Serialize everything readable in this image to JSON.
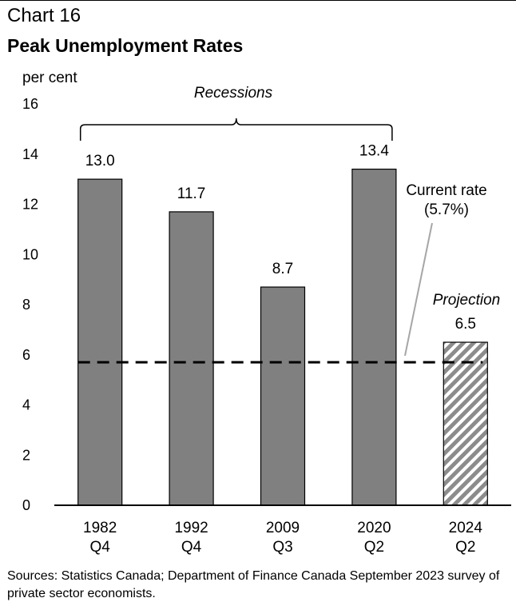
{
  "header": {
    "chart_number": "Chart 16",
    "title": "Peak Unemployment Rates"
  },
  "source_note": "Sources: Statistics Canada; Department of Finance Canada September 2023 survey of private sector economists.",
  "chart_data": {
    "type": "bar",
    "title": "Peak Unemployment Rates",
    "ylabel": "per cent",
    "ylim": [
      0,
      16
    ],
    "yticks": [
      0,
      2,
      4,
      6,
      8,
      10,
      12,
      14,
      16
    ],
    "categories": [
      {
        "line1": "1982",
        "line2": "Q4"
      },
      {
        "line1": "1992",
        "line2": "Q4"
      },
      {
        "line1": "2009",
        "line2": "Q3"
      },
      {
        "line1": "2020",
        "line2": "Q2"
      },
      {
        "line1": "2024",
        "line2": "Q2"
      }
    ],
    "values": [
      13.0,
      11.7,
      8.7,
      13.4,
      6.5
    ],
    "value_labels": [
      "13.0",
      "11.7",
      "8.7",
      "13.4",
      "6.5"
    ],
    "projected": [
      false,
      false,
      false,
      false,
      true
    ],
    "bar_color": "#808080",
    "reference_line": {
      "value": 5.7,
      "label_line1": "Current rate",
      "label_line2": "(5.7%)",
      "style": "dashed"
    },
    "annotations": {
      "recessions": "Recessions",
      "projection": "Projection"
    },
    "grid": false
  }
}
